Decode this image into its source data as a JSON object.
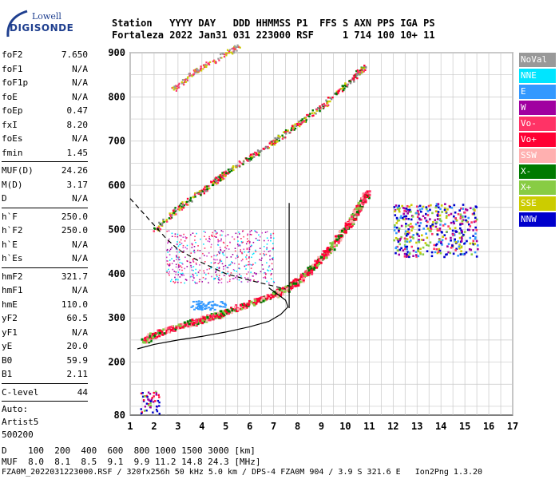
{
  "logo": {
    "top": "Lowell",
    "main": "DIGISONDE"
  },
  "header": {
    "line1": "Station   YYYY DAY   DDD HHMMSS P1  FFS S AXN PPS IGA PS",
    "line2": "Fortaleza 2022 Jan31 031 223000 RSF     1 714 100 10+ 11"
  },
  "params_group1": [
    {
      "name": "foF2",
      "value": "7.650"
    },
    {
      "name": "foF1",
      "value": "N/A"
    },
    {
      "name": "foF1p",
      "value": "N/A"
    },
    {
      "name": "foE",
      "value": "N/A"
    },
    {
      "name": "foEp",
      "value": "0.47"
    },
    {
      "name": "fxI",
      "value": "8.20"
    },
    {
      "name": "foEs",
      "value": "N/A"
    },
    {
      "name": "fmin",
      "value": "1.45"
    }
  ],
  "params_group2": [
    {
      "name": "MUF(D)",
      "value": "24.26"
    },
    {
      "name": "M(D)",
      "value": "3.17"
    },
    {
      "name": "D",
      "value": "N/A"
    }
  ],
  "params_group3": [
    {
      "name": "h`F",
      "value": "250.0"
    },
    {
      "name": "h`F2",
      "value": "250.0"
    },
    {
      "name": "h`E",
      "value": "N/A"
    },
    {
      "name": "h`Es",
      "value": "N/A"
    }
  ],
  "params_group4": [
    {
      "name": "hmF2",
      "value": "321.7"
    },
    {
      "name": "hmF1",
      "value": "N/A"
    },
    {
      "name": "hmE",
      "value": "110.0"
    },
    {
      "name": "yF2",
      "value": "60.5"
    },
    {
      "name": "yF1",
      "value": "N/A"
    },
    {
      "name": "yE",
      "value": "20.0"
    },
    {
      "name": "B0",
      "value": "59.9"
    },
    {
      "name": "B1",
      "value": "2.11"
    }
  ],
  "params_group5": [
    {
      "name": "C-level",
      "value": "44"
    }
  ],
  "autoscale": {
    "line1": "Auto:",
    "line2": "Artist5",
    "line3": "500200"
  },
  "legend": [
    {
      "label": "NoVal",
      "color": "#999999"
    },
    {
      "label": "NNE",
      "color": "#00e5ff"
    },
    {
      "label": "E",
      "color": "#3399ff"
    },
    {
      "label": "W",
      "color": "#a000a0"
    },
    {
      "label": "Vo-",
      "color": "#ff3366"
    },
    {
      "label": "Vo+",
      "color": "#ff0033"
    },
    {
      "label": "SSW",
      "color": "#ffb0b0"
    },
    {
      "label": "X-",
      "color": "#007a00"
    },
    {
      "label": "X+",
      "color": "#88cc44"
    },
    {
      "label": "SSE",
      "color": "#cccc00"
    },
    {
      "label": "NNW",
      "color": "#0000cc"
    }
  ],
  "mufline": {
    "line1": "D    100  200  400  600  800 1000 1500 3000 [km]",
    "line2": "MUF  8.0  8.1  8.5  9.1  9.9 11.2 14.8 24.3 [MHz]"
  },
  "footer": "FZA0M_2022031223000.RSF / 320fx256h 50 kHz 5.0 km / DPS-4 FZA0M 904 / 3.9 S 321.6 E   Ion2Png 1.3.20",
  "chart_data": {
    "type": "scatter",
    "xlim": [
      1,
      17
    ],
    "ylim": [
      80,
      900
    ],
    "xticks": [
      1,
      2,
      3,
      4,
      5,
      6,
      7,
      8,
      9,
      10,
      11,
      12,
      13,
      14,
      15,
      16,
      17
    ],
    "yticks": [
      80,
      200,
      300,
      400,
      500,
      600,
      700,
      800,
      900
    ],
    "grid": true,
    "legend_position": "right",
    "o_trace": {
      "x": [
        1.5,
        2,
        3,
        4,
        5,
        6,
        7,
        7.5,
        8,
        8.5,
        9,
        9.5,
        10,
        10.3,
        10.6,
        10.9
      ],
      "y": [
        248,
        265,
        282,
        298,
        315,
        335,
        355,
        368,
        385,
        410,
        440,
        470,
        505,
        530,
        560,
        585
      ]
    },
    "second_hop_trace": {
      "x": [
        2,
        3,
        4,
        5,
        6,
        7,
        8,
        9,
        10,
        10.8
      ],
      "y": [
        500,
        550,
        590,
        630,
        665,
        700,
        740,
        780,
        830,
        870
      ]
    },
    "third_hop_trace": {
      "x": [
        2.8,
        3.5,
        4.2,
        5,
        5.5
      ],
      "y": [
        820,
        850,
        875,
        900,
        915
      ]
    },
    "profile_solid": {
      "x": [
        1.3,
        2,
        3,
        4,
        5,
        6,
        6.8,
        7.3,
        7.6,
        7.5,
        7.2,
        7,
        6.8
      ],
      "y": [
        230,
        240,
        250,
        258,
        268,
        280,
        292,
        308,
        325,
        340,
        352,
        360,
        368
      ]
    },
    "profile_dashed": {
      "x": [
        1.0,
        1.5,
        2,
        2.5,
        3,
        4,
        5,
        6,
        7,
        7.5
      ],
      "y": [
        570,
        540,
        510,
        480,
        455,
        425,
        400,
        385,
        372,
        365
      ]
    },
    "critical_line": {
      "x": [
        7.65,
        7.65
      ],
      "y": [
        322,
        560
      ]
    },
    "spread_cluster": {
      "x_range": [
        12,
        15.5
      ],
      "y_range": [
        440,
        560
      ]
    },
    "low_echo_cluster": {
      "x_range": [
        1.4,
        2.2
      ],
      "y_range": [
        85,
        135
      ]
    },
    "purple_cloud": {
      "x_range": [
        2.5,
        7
      ],
      "y_range": [
        380,
        500
      ]
    }
  }
}
